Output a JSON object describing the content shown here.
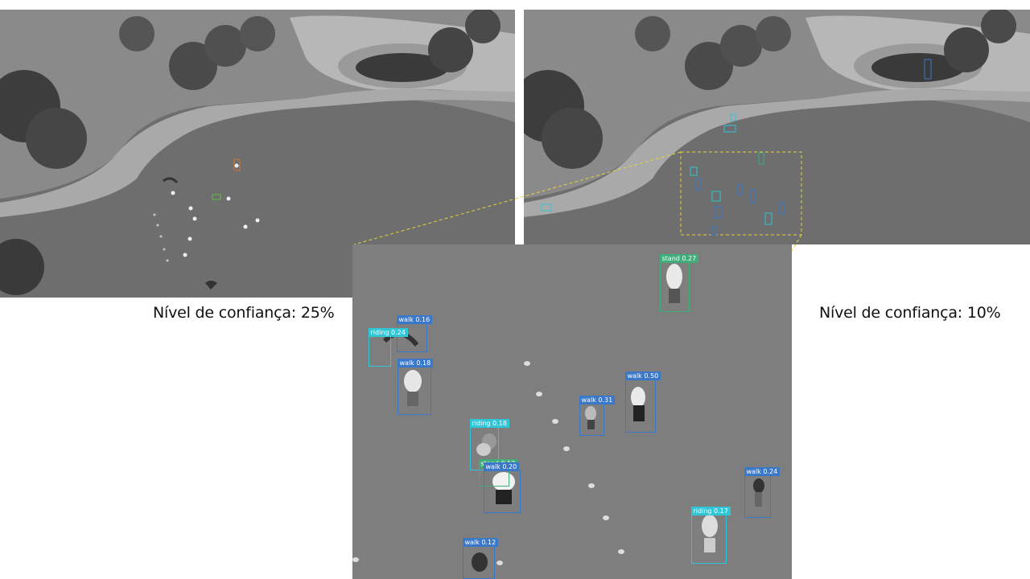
{
  "captions": {
    "left": "Nível de confiança: 25%",
    "right": "Nível de confiança: 10%"
  },
  "colors": {
    "walk_box": "#3a78c9",
    "riding_box": "#2fc6d6",
    "stand_box": "#3fae7a",
    "zoom_outline": "#e6d23a"
  },
  "zoom_detections": [
    {
      "label": "stand 0.27",
      "class": "stand"
    },
    {
      "label": "walk 0.16",
      "class": "walk"
    },
    {
      "label": "riding 0.24",
      "class": "riding"
    },
    {
      "label": "walk 0.18",
      "class": "walk"
    },
    {
      "label": "walk 0.50",
      "class": "walk"
    },
    {
      "label": "walk 0.31",
      "class": "walk"
    },
    {
      "label": "riding 0.18",
      "class": "riding"
    },
    {
      "label": "stand 0.12",
      "class": "stand"
    },
    {
      "label": "walk 0.20",
      "class": "walk"
    },
    {
      "label": "walk 0.24",
      "class": "walk"
    },
    {
      "label": "riding 0.17",
      "class": "riding"
    },
    {
      "label": "walk 0.12",
      "class": "walk"
    }
  ]
}
